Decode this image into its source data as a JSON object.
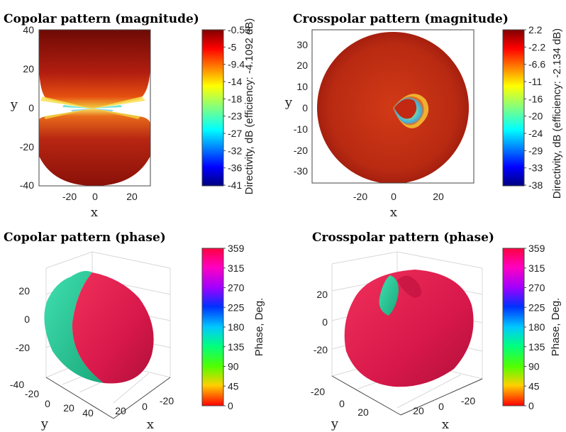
{
  "chart_data": [
    {
      "type": "heatmap",
      "title": "Copolar pattern (magnitude)",
      "xlabel": "x",
      "ylabel": "y",
      "xticks": [
        -20,
        0,
        20
      ],
      "yticks": [
        40,
        20,
        0,
        -20,
        -40
      ],
      "xlim": [
        -30,
        30
      ],
      "ylim": [
        -40,
        40
      ],
      "colorbar": {
        "label": "Directivity, dB (efficiency: -4.1092 dB)",
        "ticks": [
          "-0.53",
          "-5",
          "-9.4",
          "-14",
          "-18",
          "-23",
          "-27",
          "-32",
          "-36",
          "-41"
        ],
        "range": [
          -41,
          -0.53
        ],
        "colormap": "jet"
      }
    },
    {
      "type": "heatmap",
      "title": "Crosspolar pattern (magnitude)",
      "xlabel": "x",
      "ylabel": "y",
      "xticks": [
        -20,
        0,
        20
      ],
      "yticks": [
        30,
        20,
        10,
        0,
        -10,
        -20,
        -30
      ],
      "xlim": [
        -37,
        37
      ],
      "ylim": [
        -37,
        37
      ],
      "colorbar": {
        "label": "Directivity, dB (efficiency: -2.134 dB)",
        "ticks": [
          "2.2",
          "-2.2",
          "-6.6",
          "-11",
          "-16",
          "-20",
          "-24",
          "-29",
          "-33",
          "-38"
        ],
        "range": [
          -38,
          2.2
        ],
        "colormap": "jet"
      }
    },
    {
      "type": "surface3d",
      "title": "Copolar pattern (phase)",
      "xlabel": "x",
      "ylabel": "y",
      "xticks": [
        "-20",
        "0",
        "20"
      ],
      "yticks": [
        "-40",
        "-20",
        "0",
        "20",
        "40"
      ],
      "zticks": [
        "20",
        "0",
        "-20"
      ],
      "colorbar": {
        "label": "Phase, Deg.",
        "ticks": [
          "359",
          "315",
          "270",
          "225",
          "180",
          "135",
          "90",
          "45",
          "0"
        ],
        "range": [
          0,
          359
        ],
        "colormap": "hsv"
      }
    },
    {
      "type": "surface3d",
      "title": "Crosspolar pattern (phase)",
      "xlabel": "x",
      "ylabel": "y",
      "xticks": [
        "-20",
        "0",
        "20"
      ],
      "yticks": [
        "-20",
        "0",
        "20"
      ],
      "zticks": [
        "20",
        "0",
        "-20"
      ],
      "colorbar": {
        "label": "Phase, Deg.",
        "ticks": [
          "359",
          "315",
          "270",
          "225",
          "180",
          "135",
          "90",
          "45",
          "0"
        ],
        "range": [
          0,
          359
        ],
        "colormap": "hsv"
      }
    }
  ],
  "colors": {
    "copolar_base": "#a81a10",
    "crosspolar_base": "#bf2a14",
    "phase_red": "#e8194a",
    "phase_teal": "#2ad6a0"
  }
}
